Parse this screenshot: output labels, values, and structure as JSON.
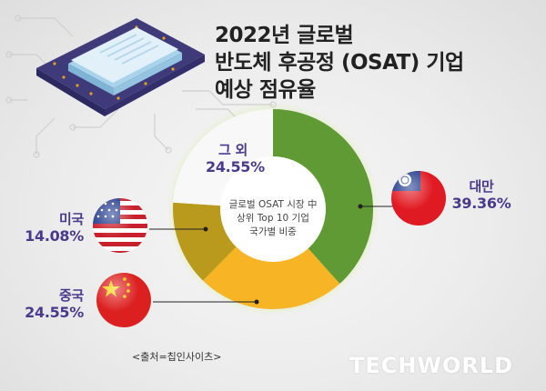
{
  "title_lines": [
    "2022년 글로벌",
    "반도체 후공정 (OSAT) 기업",
    "예상 점유율"
  ],
  "center_text": [
    "글로벌 OSAT 시장 中",
    "상위 Top 10 기업",
    "국가별 비중"
  ],
  "source": "<출처=칩인사이츠>",
  "logo": "TECHWORLD",
  "labels": {
    "taiwan": {
      "name": "대만",
      "pct": "39.36%"
    },
    "china": {
      "name": "중국",
      "pct": "24.55%"
    },
    "usa": {
      "name": "미국",
      "pct": "14.08%"
    },
    "other": {
      "name": "그 외",
      "pct": "24.55%"
    }
  },
  "colors": {
    "taiwan": "#5f9a35",
    "china": "#f7b424",
    "usa": "#b99a1c",
    "other": "#f8f8f8",
    "label_text": "#4a3a8c"
  },
  "chart_data": {
    "type": "pie",
    "title": "2022년 글로벌 반도체 후공정 (OSAT) 기업 예상 점유율",
    "categories": [
      "대만",
      "중국",
      "미국",
      "그 외"
    ],
    "values": [
      39.36,
      24.55,
      14.08,
      24.55
    ],
    "hole": true,
    "start": "12 o'clock",
    "direction": "clockwise"
  }
}
